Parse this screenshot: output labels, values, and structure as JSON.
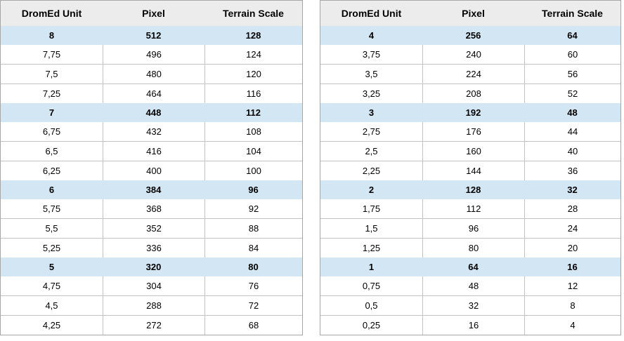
{
  "chart_data": [
    {
      "type": "table",
      "columns": [
        "DromEd Unit",
        "Pixel",
        "Terrain Scale"
      ],
      "rows": [
        [
          "8",
          "512",
          "128"
        ],
        [
          "7,75",
          "496",
          "124"
        ],
        [
          "7,5",
          "480",
          "120"
        ],
        [
          "7,25",
          "464",
          "116"
        ],
        [
          "7",
          "448",
          "112"
        ],
        [
          "6,75",
          "432",
          "108"
        ],
        [
          "6,5",
          "416",
          "104"
        ],
        [
          "6,25",
          "400",
          "100"
        ],
        [
          "6",
          "384",
          "96"
        ],
        [
          "5,75",
          "368",
          "92"
        ],
        [
          "5,5",
          "352",
          "88"
        ],
        [
          "5,25",
          "336",
          "84"
        ],
        [
          "5",
          "320",
          "80"
        ],
        [
          "4,75",
          "304",
          "76"
        ],
        [
          "4,5",
          "288",
          "72"
        ],
        [
          "4,25",
          "272",
          "68"
        ]
      ],
      "highlight_rows": [
        0,
        4,
        8,
        12
      ]
    },
    {
      "type": "table",
      "columns": [
        "DromEd Unit",
        "Pixel",
        "Terrain Scale"
      ],
      "rows": [
        [
          "4",
          "256",
          "64"
        ],
        [
          "3,75",
          "240",
          "60"
        ],
        [
          "3,5",
          "224",
          "56"
        ],
        [
          "3,25",
          "208",
          "52"
        ],
        [
          "3",
          "192",
          "48"
        ],
        [
          "2,75",
          "176",
          "44"
        ],
        [
          "2,5",
          "160",
          "40"
        ],
        [
          "2,25",
          "144",
          "36"
        ],
        [
          "2",
          "128",
          "32"
        ],
        [
          "1,75",
          "112",
          "28"
        ],
        [
          "1,5",
          "96",
          "24"
        ],
        [
          "1,25",
          "80",
          "20"
        ],
        [
          "1",
          "64",
          "16"
        ],
        [
          "0,75",
          "48",
          "12"
        ],
        [
          "0,5",
          "32",
          "8"
        ],
        [
          "0,25",
          "16",
          "4"
        ]
      ],
      "highlight_rows": [
        0,
        4,
        8,
        12
      ]
    }
  ],
  "colors": {
    "highlight_row_bg": "#d2e6f3",
    "header_bg": "#ececec",
    "outer_border": "#a6a6a6",
    "inner_border": "#c3c3c3"
  }
}
